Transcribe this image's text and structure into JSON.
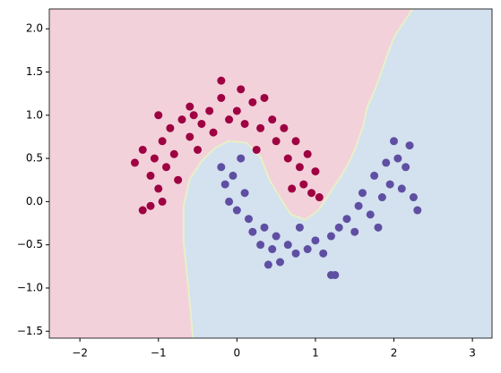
{
  "chart_data": {
    "type": "scatter",
    "xlim": [
      -2.39,
      3.25
    ],
    "ylim": [
      -1.58,
      2.23
    ],
    "xticks": [
      {
        "value": -2,
        "label": "−2"
      },
      {
        "value": -1,
        "label": "−1"
      },
      0,
      1,
      2,
      3
    ],
    "yticks": [
      {
        "value": -1.5,
        "label": "−1.5"
      },
      {
        "value": -1.0,
        "label": "−1.0"
      },
      {
        "value": -0.5,
        "label": "−0.5"
      },
      {
        "value": 0.0,
        "label": "0.0"
      },
      {
        "value": 0.5,
        "label": "0.5"
      },
      {
        "value": 1.0,
        "label": "1.0"
      },
      {
        "value": 1.5,
        "label": "1.5"
      },
      {
        "value": 2.0,
        "label": "2.0"
      }
    ],
    "region_colors": [
      "#f3d1da",
      "#d4e1ef"
    ],
    "boundary_color": "#e6f0c8",
    "decision_boundary": {
      "x": [
        2.24,
        2.01,
        1.92,
        1.84,
        1.76,
        1.66,
        1.61,
        1.51,
        1.41,
        1.3,
        1.19,
        1.04,
        0.87,
        0.69,
        0.58,
        0.41,
        0.3,
        0.12,
        -0.11,
        -0.28,
        -0.45,
        -0.6,
        -0.68,
        -0.68,
        -0.62,
        -0.56
      ],
      "y": [
        2.23,
        1.92,
        1.71,
        1.5,
        1.3,
        1.09,
        0.88,
        0.62,
        0.42,
        0.26,
        0.11,
        -0.1,
        -0.21,
        -0.15,
        0.0,
        0.26,
        0.52,
        0.68,
        0.7,
        0.62,
        0.47,
        0.26,
        -0.05,
        -0.46,
        -0.98,
        -1.58
      ]
    },
    "series": [
      {
        "color": "#9e0142",
        "x": [
          -1.3,
          -1.2,
          -1.1,
          -1.05,
          -1.0,
          -0.95,
          -0.9,
          -0.85,
          -0.8,
          -0.75,
          -0.7,
          -0.6,
          -0.55,
          -0.5,
          -0.45,
          -0.35,
          -0.3,
          -0.2,
          -0.1,
          0.0,
          0.05,
          0.1,
          0.2,
          0.3,
          0.35,
          0.45,
          0.5,
          0.6,
          0.65,
          0.75,
          0.8,
          0.85,
          0.9,
          0.95,
          1.0,
          1.05,
          -1.2,
          -1.1,
          -0.95,
          -0.6,
          -0.2,
          0.25,
          -1.0,
          0.7
        ],
        "values": [
          0.45,
          0.6,
          0.3,
          0.5,
          0.15,
          0.7,
          0.4,
          0.85,
          0.55,
          0.25,
          0.95,
          0.75,
          1.0,
          0.6,
          0.9,
          1.05,
          0.8,
          1.2,
          0.95,
          1.05,
          1.3,
          0.9,
          1.15,
          0.85,
          1.2,
          0.95,
          0.7,
          0.85,
          0.5,
          0.7,
          0.4,
          0.2,
          0.55,
          0.1,
          0.35,
          0.05,
          -0.1,
          -0.05,
          0.0,
          1.1,
          1.4,
          0.6,
          1.0,
          0.15
        ]
      },
      {
        "color": "#5e4fa2",
        "x": [
          -0.2,
          -0.15,
          -0.1,
          -0.05,
          0.0,
          0.1,
          0.15,
          0.2,
          0.3,
          0.35,
          0.45,
          0.5,
          0.55,
          0.65,
          0.75,
          0.8,
          0.9,
          1.0,
          1.1,
          1.2,
          1.25,
          1.3,
          1.4,
          1.5,
          1.55,
          1.6,
          1.7,
          1.75,
          1.85,
          1.9,
          1.95,
          2.0,
          2.05,
          2.1,
          2.15,
          2.2,
          2.25,
          2.3,
          0.4,
          1.2,
          0.05,
          1.8
        ],
        "values": [
          0.4,
          0.2,
          0.0,
          0.3,
          -0.1,
          0.1,
          -0.2,
          -0.35,
          -0.5,
          -0.3,
          -0.55,
          -0.4,
          -0.7,
          -0.5,
          -0.6,
          -0.3,
          -0.55,
          -0.45,
          -0.6,
          -0.4,
          -0.85,
          -0.3,
          -0.2,
          -0.35,
          -0.05,
          0.1,
          -0.15,
          0.3,
          0.05,
          0.45,
          0.2,
          0.7,
          0.5,
          0.15,
          0.4,
          0.65,
          0.05,
          -0.1,
          -0.73,
          -0.85,
          0.5,
          -0.3
        ]
      }
    ]
  }
}
